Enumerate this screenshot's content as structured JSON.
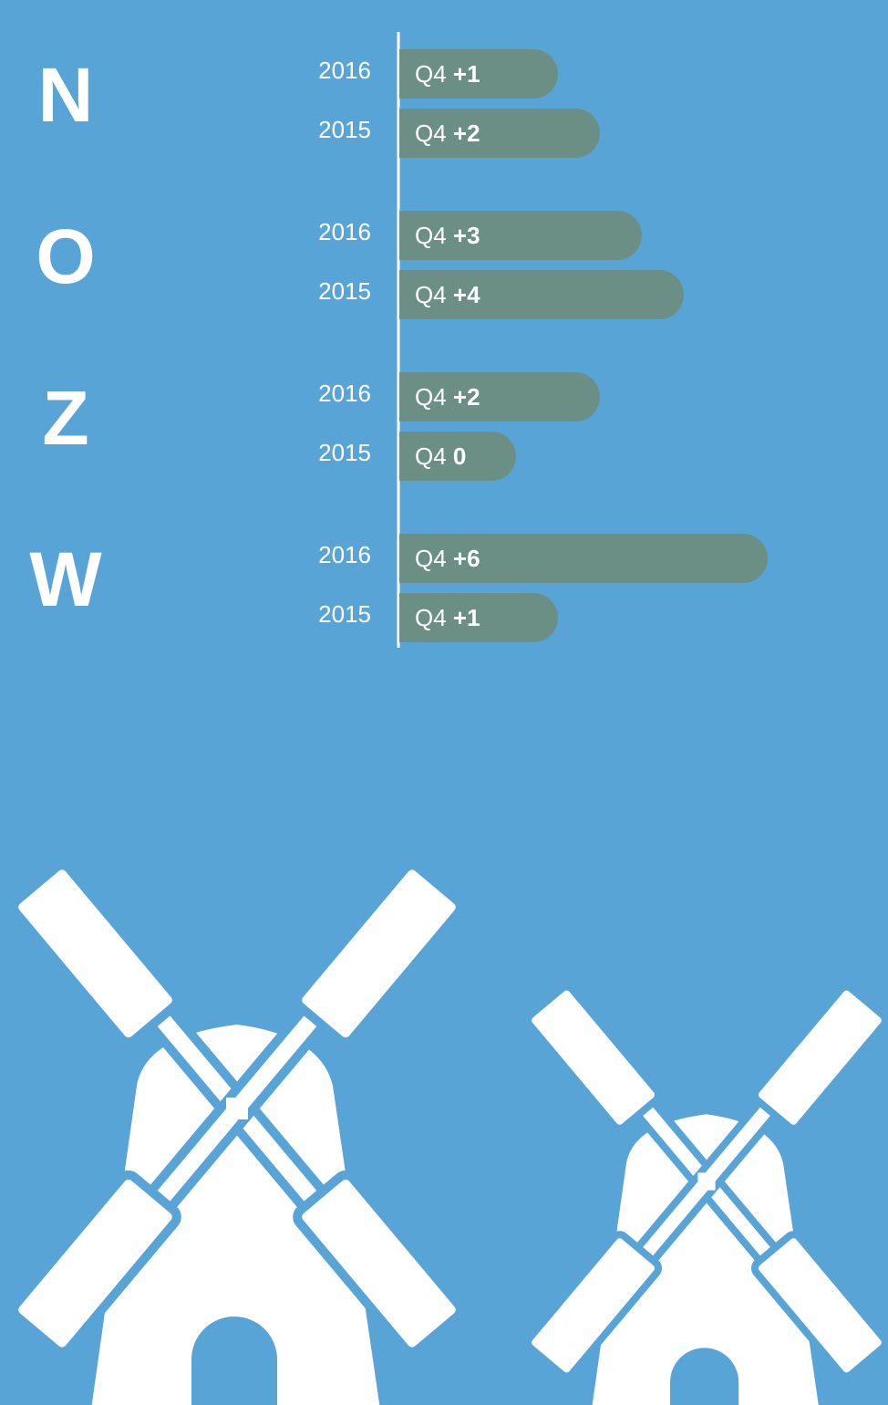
{
  "chart_data": {
    "type": "bar",
    "orientation": "horizontal",
    "bar_label": "Q4",
    "color": "#6b8f85",
    "groups": [
      {
        "name": "N",
        "categories": [
          "2016",
          "2015"
        ],
        "values": [
          1,
          2
        ],
        "value_labels": [
          "+1",
          "+2"
        ]
      },
      {
        "name": "O",
        "categories": [
          "2016",
          "2015"
        ],
        "values": [
          3,
          4
        ],
        "value_labels": [
          "+3",
          "+4"
        ]
      },
      {
        "name": "Z",
        "categories": [
          "2016",
          "2015"
        ],
        "values": [
          2,
          0
        ],
        "value_labels": [
          "+2",
          "0"
        ]
      },
      {
        "name": "W",
        "categories": [
          "2016",
          "2015"
        ],
        "values": [
          6,
          1
        ],
        "value_labels": [
          "+6",
          "+1"
        ]
      }
    ]
  }
}
